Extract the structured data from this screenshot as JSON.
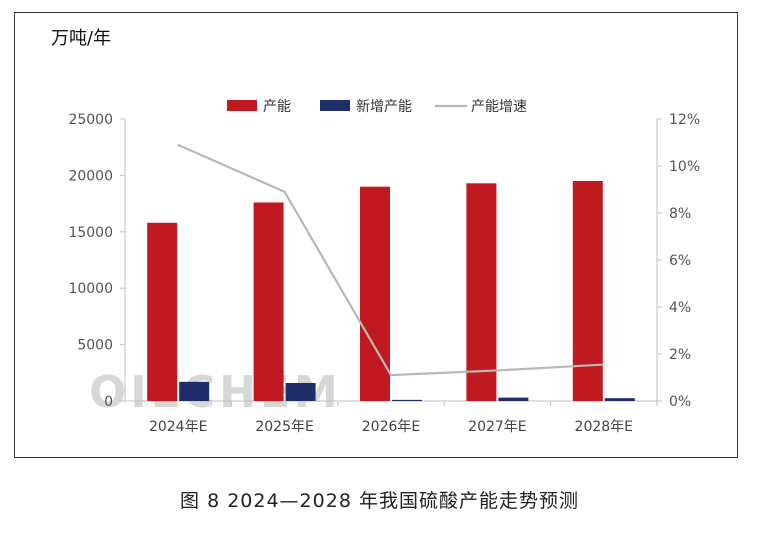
{
  "chart_data": {
    "type": "bar",
    "unit_label": "万吨/年",
    "categories": [
      "2024年E",
      "2025年E",
      "2026年E",
      "2027年E",
      "2028年E"
    ],
    "series": [
      {
        "name": "产能",
        "kind": "bar",
        "axis": "left",
        "color": "#c0191f",
        "values": [
          15800,
          17600,
          19000,
          19300,
          19500
        ]
      },
      {
        "name": "新增产能",
        "kind": "bar",
        "axis": "left",
        "color": "#1f2d6b",
        "values": [
          1700,
          1600,
          100,
          300,
          250
        ]
      },
      {
        "name": "产能增速",
        "kind": "line",
        "axis": "right",
        "color": "#b8b8b8",
        "values": [
          10.9,
          8.9,
          1.1,
          1.3,
          1.55
        ]
      }
    ],
    "y_left": {
      "min": 0,
      "max": 25000,
      "ticks": [
        "0",
        "5000",
        "10000",
        "15000",
        "20000",
        "25000"
      ]
    },
    "y_right": {
      "min": 0,
      "max": 12,
      "ticks": [
        "0%",
        "2%",
        "4%",
        "6%",
        "8%",
        "10%",
        "12%"
      ]
    },
    "legend_position": "top",
    "grid": false
  },
  "watermark": "OILCHEM",
  "caption": "图 8  2024—2028 年我国硫酸产能走势预测"
}
